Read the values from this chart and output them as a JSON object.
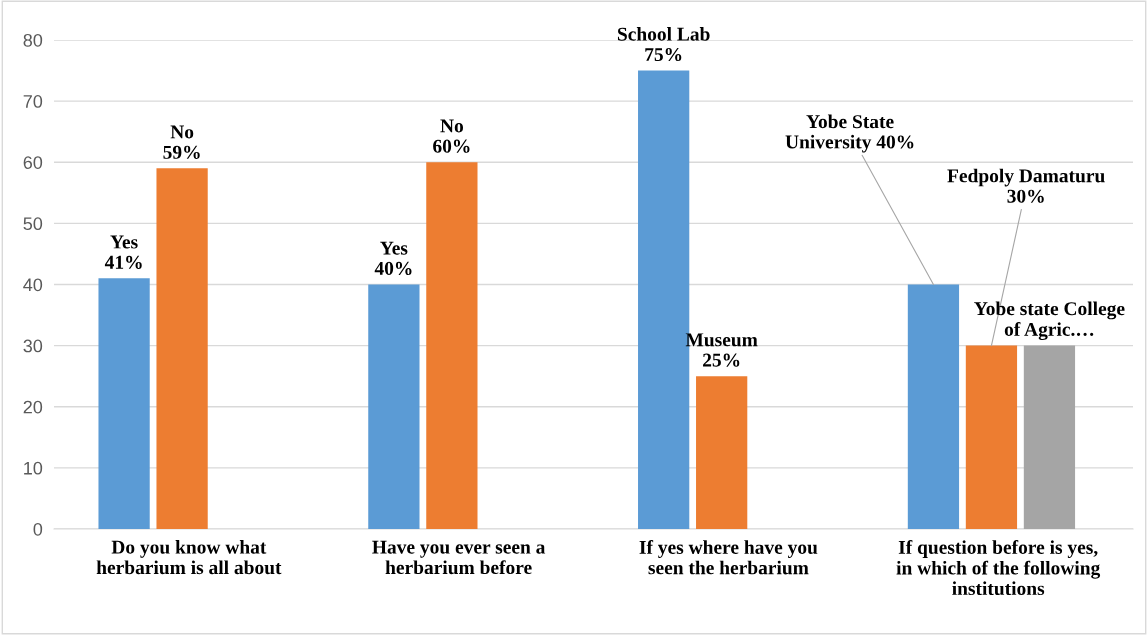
{
  "chart_data": {
    "type": "bar",
    "categories": [
      "Do you know what\nherbarium is all about",
      "Have you ever seen a\nherbarium before",
      "If yes where have you\nseen the herbarium",
      "If question before is yes,\nin which of the following\ninstitutions"
    ],
    "series": [
      {
        "color": "#5b9bd5",
        "values": [
          41,
          40,
          75,
          40
        ],
        "value_labels": [
          "Yes\n41%",
          "Yes\n40%",
          "School Lab\n75%",
          "Yobe State\nUniversity 40%"
        ]
      },
      {
        "color": "#ed7d31",
        "values": [
          59,
          60,
          25,
          30
        ],
        "value_labels": [
          "No\n59%",
          "No\n60%",
          "Museum\n25%",
          "Fedpoly Damaturu\n30%"
        ]
      },
      {
        "color": "#a5a5a5",
        "values": [
          null,
          null,
          null,
          30
        ],
        "value_labels": [
          null,
          null,
          null,
          "Yobe state College\nof Agric.…"
        ]
      }
    ],
    "ylim": [
      0,
      80
    ],
    "yticks": [
      0,
      10,
      20,
      30,
      40,
      50,
      60,
      70,
      80
    ],
    "grid": "y",
    "legend": false
  }
}
